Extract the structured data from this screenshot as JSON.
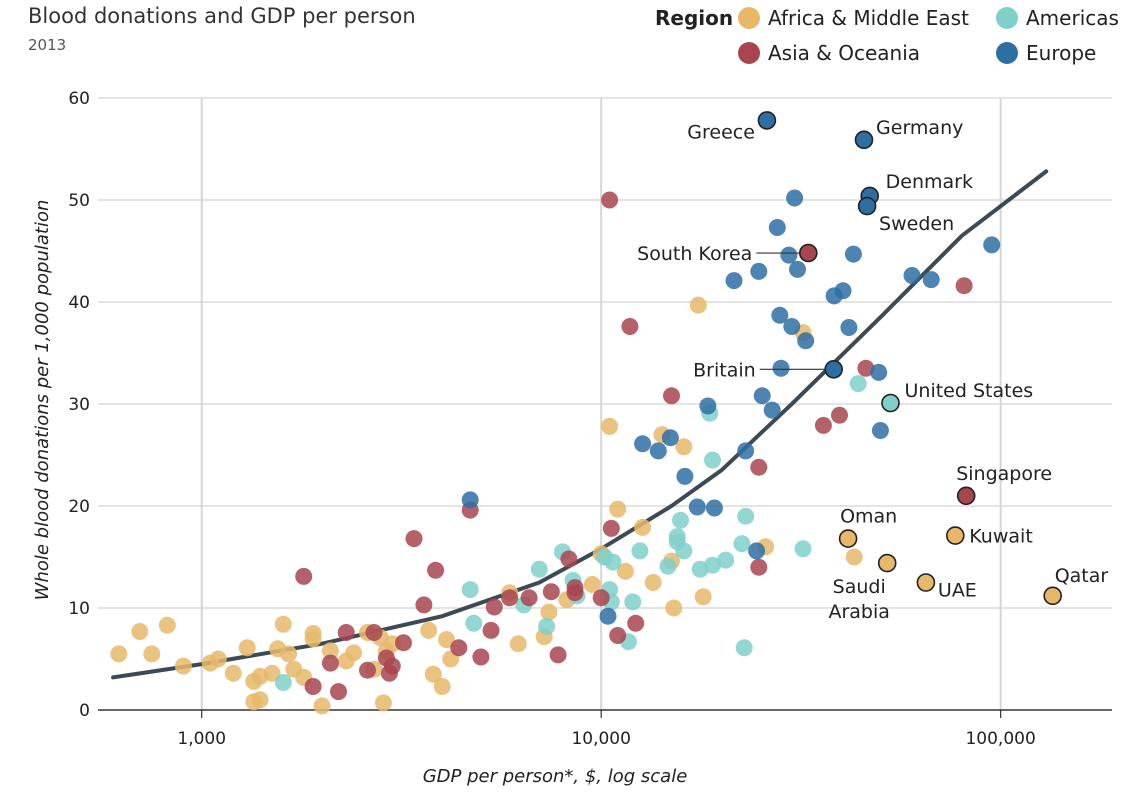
{
  "chart_data": {
    "type": "scatter",
    "title": "Blood donations and GDP per person",
    "subtitle": "2013",
    "xlabel": "GDP per person*, $, log scale",
    "ylabel": "Whole blood donations per 1,000 population",
    "xscale": "log",
    "xlim": [
      550,
      190000
    ],
    "ylim": [
      0,
      60
    ],
    "xticks": [
      1000,
      10000,
      100000
    ],
    "xtick_labels": [
      "1,000",
      "10,000",
      "100,000"
    ],
    "yticks": [
      0,
      10,
      20,
      30,
      40,
      50,
      60
    ],
    "ytick_labels": [
      "0",
      "10",
      "20",
      "30",
      "40",
      "50",
      "60"
    ],
    "grid": true,
    "legend": {
      "title": "Region",
      "placement": "top-right",
      "items": [
        {
          "name": "Africa & Middle East",
          "color": "#e8b86a"
        },
        {
          "name": "Americas",
          "color": "#7fd0c9"
        },
        {
          "name": "Asia & Oceania",
          "color": "#a8454f"
        },
        {
          "name": "Europe",
          "color": "#2e6fa3"
        }
      ]
    },
    "series": [
      {
        "name": "Africa & Middle East",
        "color": "#e8b86a",
        "points": [
          [
            620,
            5.5
          ],
          [
            700,
            7.7
          ],
          [
            750,
            5.5
          ],
          [
            820,
            8.3
          ],
          [
            900,
            4.3
          ],
          [
            1050,
            4.6
          ],
          [
            1100,
            5.0
          ],
          [
            1200,
            3.6
          ],
          [
            1300,
            6.1
          ],
          [
            1350,
            2.8
          ],
          [
            1400,
            3.3
          ],
          [
            1350,
            0.8
          ],
          [
            1400,
            1.0
          ],
          [
            1500,
            3.6
          ],
          [
            1550,
            6.0
          ],
          [
            1600,
            8.4
          ],
          [
            1650,
            5.5
          ],
          [
            1700,
            4.0
          ],
          [
            1800,
            3.2
          ],
          [
            1900,
            7.5
          ],
          [
            1900,
            7.0
          ],
          [
            2000,
            0.4
          ],
          [
            2100,
            5.8
          ],
          [
            2300,
            4.8
          ],
          [
            2400,
            5.6
          ],
          [
            2600,
            7.6
          ],
          [
            2700,
            4.0
          ],
          [
            2800,
            7.1
          ],
          [
            2850,
            0.7
          ],
          [
            2900,
            5.8
          ],
          [
            3000,
            6.5
          ],
          [
            3700,
            7.8
          ],
          [
            3800,
            3.5
          ],
          [
            4000,
            2.3
          ],
          [
            4100,
            6.9
          ],
          [
            4200,
            5.0
          ],
          [
            5900,
            11.5
          ],
          [
            6200,
            6.5
          ],
          [
            7200,
            7.2
          ],
          [
            7400,
            9.6
          ],
          [
            8200,
            10.8
          ],
          [
            9500,
            12.3
          ],
          [
            10000,
            15.3
          ],
          [
            10500,
            27.8
          ],
          [
            11000,
            19.7
          ],
          [
            11500,
            13.6
          ],
          [
            12700,
            17.9
          ],
          [
            13500,
            12.5
          ],
          [
            14200,
            27.0
          ],
          [
            15000,
            14.6
          ],
          [
            15200,
            10.0
          ],
          [
            16100,
            25.8
          ],
          [
            17500,
            39.7
          ],
          [
            18000,
            11.1
          ],
          [
            25800,
            16.0
          ],
          [
            32000,
            37.0
          ],
          [
            43000,
            15.0
          ]
        ]
      },
      {
        "name": "Americas",
        "color": "#7fd0c9",
        "points": [
          [
            1600,
            2.7
          ],
          [
            4700,
            11.8
          ],
          [
            4800,
            8.5
          ],
          [
            6400,
            10.3
          ],
          [
            7000,
            13.8
          ],
          [
            7300,
            8.2
          ],
          [
            8000,
            15.5
          ],
          [
            8500,
            12.7
          ],
          [
            8700,
            11.2
          ],
          [
            10200,
            15.0
          ],
          [
            10500,
            11.8
          ],
          [
            10600,
            10.6
          ],
          [
            10700,
            14.5
          ],
          [
            11700,
            6.7
          ],
          [
            12000,
            10.6
          ],
          [
            12500,
            15.6
          ],
          [
            14700,
            14.1
          ],
          [
            15500,
            17.0
          ],
          [
            15500,
            16.5
          ],
          [
            15800,
            18.6
          ],
          [
            16100,
            15.6
          ],
          [
            17700,
            13.8
          ],
          [
            18700,
            29.1
          ],
          [
            19000,
            24.5
          ],
          [
            19000,
            14.2
          ],
          [
            20500,
            14.7
          ],
          [
            22500,
            16.3
          ],
          [
            22800,
            6.1
          ],
          [
            23000,
            19.0
          ],
          [
            32000,
            15.8
          ],
          [
            44000,
            32.0
          ],
          [
            53000,
            30.1
          ]
        ]
      },
      {
        "name": "Asia & Oceania",
        "color": "#a8454f",
        "points": [
          [
            1800,
            13.1
          ],
          [
            1900,
            2.3
          ],
          [
            2100,
            4.6
          ],
          [
            2200,
            1.8
          ],
          [
            2300,
            7.6
          ],
          [
            2600,
            3.9
          ],
          [
            2700,
            7.6
          ],
          [
            2900,
            5.1
          ],
          [
            2950,
            3.6
          ],
          [
            3000,
            4.3
          ],
          [
            3200,
            6.6
          ],
          [
            3400,
            16.8
          ],
          [
            3600,
            10.3
          ],
          [
            3850,
            13.7
          ],
          [
            4400,
            6.1
          ],
          [
            4700,
            19.6
          ],
          [
            5000,
            5.2
          ],
          [
            5300,
            7.8
          ],
          [
            5400,
            10.1
          ],
          [
            5900,
            11.0
          ],
          [
            6600,
            11.0
          ],
          [
            7500,
            11.6
          ],
          [
            7800,
            5.4
          ],
          [
            8300,
            14.8
          ],
          [
            8600,
            11.5
          ],
          [
            8600,
            12.0
          ],
          [
            10000,
            11.0
          ],
          [
            10500,
            50.0
          ],
          [
            10600,
            17.8
          ],
          [
            11000,
            7.3
          ],
          [
            11800,
            37.6
          ],
          [
            12200,
            8.5
          ],
          [
            15000,
            30.8
          ],
          [
            24800,
            14.0
          ],
          [
            24800,
            23.8
          ],
          [
            33000,
            44.8
          ],
          [
            36000,
            27.9
          ],
          [
            39500,
            28.9
          ],
          [
            46000,
            33.5
          ],
          [
            82000,
            21.0
          ],
          [
            81000,
            41.6
          ]
        ]
      },
      {
        "name": "Europe",
        "color": "#2e6fa3",
        "points": [
          [
            4700,
            20.6
          ],
          [
            10400,
            9.2
          ],
          [
            12700,
            26.1
          ],
          [
            13900,
            25.4
          ],
          [
            14900,
            26.7
          ],
          [
            16200,
            22.9
          ],
          [
            17400,
            19.9
          ],
          [
            18500,
            29.8
          ],
          [
            19200,
            19.8
          ],
          [
            21500,
            42.1
          ],
          [
            23000,
            25.4
          ],
          [
            24500,
            15.6
          ],
          [
            24800,
            43.0
          ],
          [
            25300,
            30.8
          ],
          [
            26000,
            57.8
          ],
          [
            26800,
            29.4
          ],
          [
            27600,
            47.3
          ],
          [
            28000,
            38.7
          ],
          [
            28200,
            33.5
          ],
          [
            29500,
            44.6
          ],
          [
            30000,
            37.6
          ],
          [
            30500,
            50.2
          ],
          [
            31000,
            43.2
          ],
          [
            32500,
            36.2
          ],
          [
            38200,
            33.4
          ],
          [
            38300,
            40.6
          ],
          [
            40300,
            41.1
          ],
          [
            41700,
            37.5
          ],
          [
            42800,
            44.7
          ],
          [
            45500,
            55.9
          ],
          [
            46300,
            49.4
          ],
          [
            47000,
            50.4
          ],
          [
            49500,
            33.1
          ],
          [
            50000,
            27.4
          ],
          [
            60000,
            42.6
          ],
          [
            67000,
            42.2
          ],
          [
            95000,
            45.6
          ]
        ]
      }
    ],
    "highlighted": [
      {
        "label": "Greece",
        "x": 26000,
        "y": 57.8,
        "region": "Europe"
      },
      {
        "label": "Germany",
        "x": 45500,
        "y": 55.9,
        "region": "Europe"
      },
      {
        "label": "Denmark",
        "x": 47000,
        "y": 50.4,
        "region": "Europe"
      },
      {
        "label": "Sweden",
        "x": 46300,
        "y": 49.4,
        "region": "Europe"
      },
      {
        "label": "South Korea",
        "x": 33000,
        "y": 44.8,
        "region": "Asia & Oceania"
      },
      {
        "label": "Britain",
        "x": 38200,
        "y": 33.4,
        "region": "Europe"
      },
      {
        "label": "United States",
        "x": 53000,
        "y": 30.1,
        "region": "Americas"
      },
      {
        "label": "Singapore",
        "x": 82000,
        "y": 21.0,
        "region": "Asia & Oceania"
      },
      {
        "label": "Oman",
        "x": 41500,
        "y": 16.8,
        "region": "Africa & Middle East"
      },
      {
        "label": "Kuwait",
        "x": 77000,
        "y": 17.1,
        "region": "Africa & Middle East"
      },
      {
        "label": "Saudi Arabia",
        "x": 52000,
        "y": 14.4,
        "region": "Africa & Middle East"
      },
      {
        "label": "UAE",
        "x": 65000,
        "y": 12.5,
        "region": "Africa & Middle East"
      },
      {
        "label": "Qatar",
        "x": 135000,
        "y": 11.2,
        "region": "Africa & Middle East"
      }
    ],
    "trend_line": [
      [
        600,
        3.2
      ],
      [
        1000,
        4.5
      ],
      [
        2000,
        6.5
      ],
      [
        4000,
        9.2
      ],
      [
        7000,
        12.5
      ],
      [
        10000,
        15.8
      ],
      [
        15000,
        20.0
      ],
      [
        20000,
        23.5
      ],
      [
        30000,
        30.0
      ],
      [
        50000,
        38.5
      ],
      [
        80000,
        46.5
      ],
      [
        130000,
        52.8
      ]
    ],
    "trend_color": "#3d4a53",
    "highlight_stroke": "#222222"
  }
}
